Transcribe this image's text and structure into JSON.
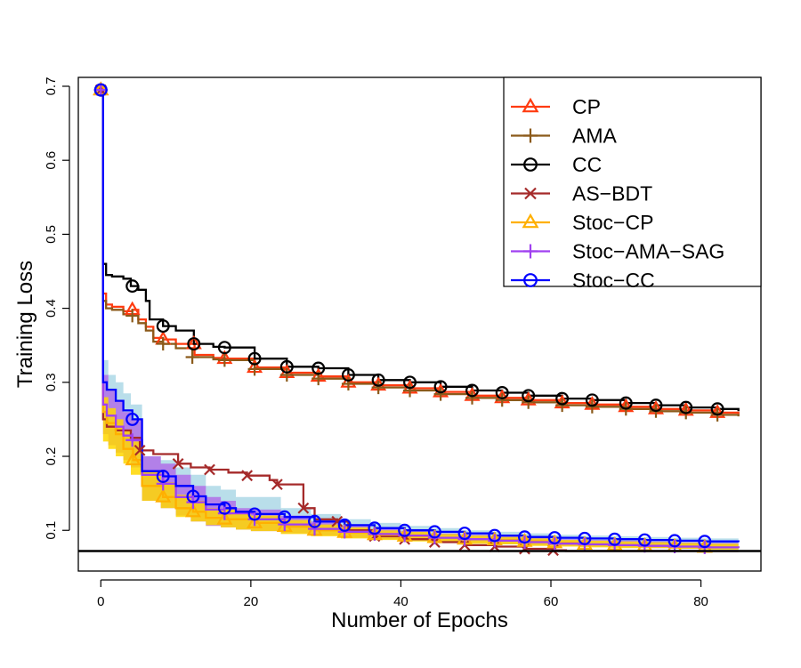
{
  "chart_data": {
    "type": "line",
    "title": "",
    "xlabel": "Number of Epochs",
    "ylabel": "Training Loss",
    "xlim": [
      -3,
      88
    ],
    "ylim": [
      0.045,
      0.712
    ],
    "xticks": [
      0,
      20,
      40,
      60,
      80
    ],
    "xtick_labels": [
      "0",
      "20",
      "40",
      "60",
      "80"
    ],
    "yticks": [
      0.1,
      0.2,
      0.3,
      0.4,
      0.5,
      0.6,
      0.7
    ],
    "ytick_labels": [
      "0.1",
      "0.2",
      "0.3",
      "0.4",
      "0.5",
      "0.6",
      "0.7"
    ],
    "reference_line_y": 0.072,
    "legend_position": "top-right",
    "series": [
      {
        "name": "CP",
        "color": "#ff3b10",
        "marker": "triangle",
        "x": [
          0,
          0.3,
          0.7,
          1.5,
          3,
          4.2,
          5,
          6,
          7,
          8.3,
          10,
          12.5,
          15,
          16.5,
          20.5,
          24.8,
          29,
          33,
          37,
          41.2,
          45.3,
          49.5,
          53.5,
          57,
          61.5,
          65.5,
          70,
          74,
          78,
          82.2,
          85
        ],
        "y": [
          0.695,
          0.42,
          0.405,
          0.402,
          0.396,
          0.398,
          0.385,
          0.375,
          0.36,
          0.358,
          0.352,
          0.337,
          0.333,
          0.332,
          0.32,
          0.313,
          0.308,
          0.3,
          0.296,
          0.292,
          0.287,
          0.282,
          0.279,
          0.276,
          0.272,
          0.27,
          0.267,
          0.264,
          0.262,
          0.259,
          0.257
        ],
        "marker_x": [
          0,
          4.2,
          8.3,
          12.4,
          16.5,
          20.5,
          24.8,
          29,
          33,
          37,
          41.2,
          45.3,
          49.5,
          53.5,
          57,
          61.5,
          65.5,
          70,
          74,
          78,
          82.2
        ]
      },
      {
        "name": "AMA",
        "color": "#8b5a1a",
        "marker": "plus",
        "x": [
          0,
          0.3,
          0.7,
          1.5,
          3,
          4.2,
          5,
          6,
          7,
          8.3,
          10,
          12.2,
          15,
          16.5,
          20.5,
          24.8,
          29,
          33,
          37,
          41.2,
          45.3,
          49.5,
          53.5,
          57,
          61.5,
          65.5,
          70,
          74,
          78,
          82.2,
          85
        ],
        "y": [
          0.695,
          0.41,
          0.4,
          0.398,
          0.392,
          0.39,
          0.38,
          0.37,
          0.355,
          0.352,
          0.346,
          0.334,
          0.331,
          0.33,
          0.318,
          0.31,
          0.305,
          0.298,
          0.293,
          0.289,
          0.284,
          0.279,
          0.276,
          0.273,
          0.269,
          0.267,
          0.264,
          0.261,
          0.259,
          0.256,
          0.254
        ],
        "marker_x": [
          0,
          4.2,
          8.3,
          12.2,
          16.5,
          20.5,
          24.8,
          29,
          33,
          37,
          41.2,
          45.3,
          49.5,
          53.5,
          57,
          61.5,
          65.5,
          70,
          74,
          78,
          82.2
        ]
      },
      {
        "name": "CC",
        "color": "#000000",
        "marker": "circle",
        "x": [
          0,
          0.3,
          0.7,
          1.5,
          3,
          4,
          5,
          6,
          6.5,
          8.3,
          10,
          12.4,
          15,
          16.5,
          20.5,
          24.8,
          29,
          33,
          37,
          41.2,
          45.3,
          49.5,
          53.5,
          57,
          61.5,
          65.5,
          70,
          74,
          78,
          82.2,
          85
        ],
        "y": [
          0.695,
          0.46,
          0.445,
          0.443,
          0.44,
          0.43,
          0.425,
          0.41,
          0.385,
          0.376,
          0.37,
          0.352,
          0.348,
          0.347,
          0.332,
          0.321,
          0.319,
          0.31,
          0.303,
          0.3,
          0.294,
          0.289,
          0.286,
          0.282,
          0.278,
          0.276,
          0.272,
          0.269,
          0.266,
          0.264,
          0.261
        ],
        "marker_x": [
          0,
          4.2,
          8.3,
          12.4,
          16.5,
          20.5,
          24.8,
          29,
          33,
          37,
          41.2,
          45.3,
          49.5,
          53.5,
          57,
          61.5,
          65.5,
          70,
          74,
          78,
          82.2
        ]
      },
      {
        "name": "AS−BDT",
        "color": "#a52a2a",
        "marker": "x",
        "x": [
          0,
          0.3,
          0.8,
          2,
          4,
          5.2,
          7,
          10.3,
          12,
          14.5,
          17,
          19.5,
          22.5,
          23.5,
          27,
          28.5,
          31.5,
          33,
          36.5,
          40.5,
          44.5,
          48.5,
          52.5,
          56.5,
          60.3,
          62,
          85
        ],
        "y": [
          0.695,
          0.25,
          0.24,
          0.235,
          0.225,
          0.208,
          0.203,
          0.19,
          0.185,
          0.182,
          0.178,
          0.174,
          0.168,
          0.162,
          0.13,
          0.115,
          0.112,
          0.1,
          0.092,
          0.088,
          0.084,
          0.08,
          0.078,
          0.075,
          0.073,
          0.072,
          0.072
        ],
        "marker_x": [
          0,
          5.2,
          10.3,
          14.5,
          19.5,
          23.5,
          27,
          31.5,
          36.5,
          40.5,
          44.5,
          48.5,
          52.5,
          56.5,
          60.3
        ]
      },
      {
        "name": "Stoc−CP",
        "color": "#ffb000",
        "marker": "triangle",
        "x": [
          0,
          0.3,
          0.8,
          2,
          3,
          4.3,
          5.5,
          8.3,
          10,
          12.3,
          14,
          16.5,
          20.5,
          24.5,
          28.5,
          32.5,
          36.5,
          40.5,
          44.5,
          48.5,
          52.5,
          56.5,
          60.5,
          64.5,
          68.5,
          72.5,
          76.5,
          80.5,
          85
        ],
        "y": [
          0.695,
          0.26,
          0.245,
          0.23,
          0.21,
          0.195,
          0.16,
          0.145,
          0.13,
          0.125,
          0.117,
          0.115,
          0.11,
          0.105,
          0.1,
          0.097,
          0.094,
          0.092,
          0.09,
          0.088,
          0.087,
          0.085,
          0.083,
          0.081,
          0.08,
          0.079,
          0.078,
          0.077,
          0.076
        ],
        "marker_x": [
          0,
          4.3,
          8.3,
          12.3,
          16.5,
          20.5,
          24.5,
          28.5,
          32.5,
          36.5,
          40.5,
          44.5,
          48.5,
          52.5,
          56.5,
          60.5,
          64.5,
          68.5,
          72.5,
          76.5,
          80.5
        ]
      },
      {
        "name": "Stoc−AMA−SAG",
        "color": "#a040f0",
        "marker": "plus",
        "x": [
          0,
          0.3,
          0.8,
          2,
          3,
          4.2,
          5.5,
          8.3,
          10,
          12.3,
          14,
          16.5,
          20.5,
          24.5,
          28.5,
          32.5,
          36.5,
          40.5,
          44.5,
          48.5,
          52.5,
          56.5,
          60.5,
          64.5,
          68.5,
          72.5,
          76.5,
          80.5,
          85
        ],
        "y": [
          0.695,
          0.27,
          0.255,
          0.24,
          0.228,
          0.222,
          0.175,
          0.163,
          0.145,
          0.138,
          0.128,
          0.123,
          0.115,
          0.108,
          0.102,
          0.098,
          0.095,
          0.093,
          0.09,
          0.088,
          0.086,
          0.084,
          0.082,
          0.081,
          0.08,
          0.079,
          0.078,
          0.077,
          0.076
        ],
        "marker_x": [
          0,
          4.2,
          8.3,
          12.3,
          16.5,
          20.5,
          24.5,
          28.5,
          32.5,
          36.5,
          40.5,
          44.5,
          48.5,
          52.5,
          56.5,
          60.5,
          64.5,
          68.5,
          72.5,
          76.5,
          80.5
        ]
      },
      {
        "name": "Stoc−CC",
        "color": "#0000ff",
        "marker": "circle",
        "x": [
          0,
          0.3,
          0.8,
          2,
          3,
          4.2,
          5.5,
          8.3,
          10,
          12.3,
          14,
          16.5,
          18,
          20.5,
          24.5,
          28.5,
          32.5,
          36.5,
          40.5,
          44.5,
          48.5,
          52.5,
          56.5,
          60.5,
          64.5,
          68.5,
          72.5,
          76.5,
          80.5,
          85
        ],
        "y": [
          0.695,
          0.3,
          0.29,
          0.275,
          0.262,
          0.25,
          0.18,
          0.173,
          0.16,
          0.146,
          0.135,
          0.13,
          0.125,
          0.122,
          0.118,
          0.112,
          0.107,
          0.103,
          0.1,
          0.098,
          0.096,
          0.093,
          0.091,
          0.09,
          0.089,
          0.088,
          0.087,
          0.086,
          0.085,
          0.084
        ],
        "marker_x": [
          0,
          4.2,
          8.3,
          12.3,
          16.5,
          20.5,
          24.5,
          28.5,
          32.5,
          36.5,
          40.5,
          44.5,
          48.5,
          52.5,
          56.5,
          60.5,
          64.5,
          68.5,
          72.5,
          76.5,
          80.5
        ]
      }
    ],
    "bands": [
      {
        "series": "Stoc−CC",
        "color": "#add8e6",
        "x": [
          0,
          0.3,
          1,
          2,
          3,
          4,
          5.5,
          8,
          10,
          12,
          14,
          16,
          18,
          20,
          24,
          28,
          32,
          36,
          40,
          44,
          48,
          52,
          56,
          60,
          64,
          68,
          72,
          76,
          80,
          85
        ],
        "lower": [
          0.69,
          0.26,
          0.24,
          0.235,
          0.225,
          0.21,
          0.16,
          0.15,
          0.14,
          0.13,
          0.12,
          0.118,
          0.115,
          0.113,
          0.108,
          0.103,
          0.099,
          0.096,
          0.094,
          0.091,
          0.089,
          0.087,
          0.086,
          0.085,
          0.084,
          0.083,
          0.082,
          0.081,
          0.08,
          0.079
        ],
        "upper": [
          0.7,
          0.33,
          0.31,
          0.3,
          0.285,
          0.27,
          0.2,
          0.195,
          0.185,
          0.175,
          0.16,
          0.155,
          0.145,
          0.145,
          0.13,
          0.122,
          0.115,
          0.11,
          0.106,
          0.103,
          0.1,
          0.098,
          0.096,
          0.094,
          0.093,
          0.092,
          0.091,
          0.09,
          0.089,
          0.088
        ]
      },
      {
        "series": "Stoc−AMA−SAG",
        "color": "#b070e8",
        "x": [
          0,
          0.3,
          1,
          2,
          3,
          4,
          5.5,
          8,
          10,
          12,
          14,
          16,
          18,
          20,
          24,
          28,
          32,
          36,
          40,
          44,
          48,
          52,
          56,
          60,
          64,
          68,
          72,
          76,
          80,
          85
        ],
        "lower": [
          0.69,
          0.23,
          0.215,
          0.205,
          0.195,
          0.185,
          0.14,
          0.13,
          0.12,
          0.112,
          0.106,
          0.104,
          0.101,
          0.099,
          0.096,
          0.093,
          0.09,
          0.088,
          0.086,
          0.084,
          0.083,
          0.081,
          0.08,
          0.079,
          0.078,
          0.077,
          0.076,
          0.075,
          0.075,
          0.074
        ],
        "upper": [
          0.7,
          0.31,
          0.29,
          0.275,
          0.26,
          0.25,
          0.2,
          0.19,
          0.175,
          0.16,
          0.145,
          0.14,
          0.13,
          0.128,
          0.12,
          0.112,
          0.106,
          0.102,
          0.099,
          0.096,
          0.094,
          0.092,
          0.09,
          0.088,
          0.087,
          0.086,
          0.085,
          0.084,
          0.083,
          0.082
        ]
      },
      {
        "series": "Stoc−CP",
        "color": "#ffd700",
        "x": [
          0,
          0.3,
          1,
          2,
          3,
          4,
          5.5,
          8,
          10,
          12,
          14,
          16,
          18,
          20,
          24,
          28,
          32,
          36,
          40,
          44,
          48,
          52,
          56,
          60,
          64,
          68,
          72,
          76,
          80,
          85
        ],
        "lower": [
          0.69,
          0.22,
          0.21,
          0.2,
          0.19,
          0.175,
          0.14,
          0.13,
          0.118,
          0.112,
          0.107,
          0.104,
          0.101,
          0.099,
          0.095,
          0.092,
          0.089,
          0.087,
          0.085,
          0.084,
          0.082,
          0.081,
          0.079,
          0.078,
          0.077,
          0.076,
          0.076,
          0.075,
          0.074,
          0.074
        ],
        "upper": [
          0.7,
          0.28,
          0.265,
          0.25,
          0.235,
          0.22,
          0.18,
          0.165,
          0.148,
          0.14,
          0.13,
          0.128,
          0.122,
          0.12,
          0.114,
          0.108,
          0.104,
          0.1,
          0.098,
          0.095,
          0.093,
          0.091,
          0.089,
          0.087,
          0.086,
          0.085,
          0.084,
          0.083,
          0.082,
          0.081
        ]
      }
    ]
  }
}
